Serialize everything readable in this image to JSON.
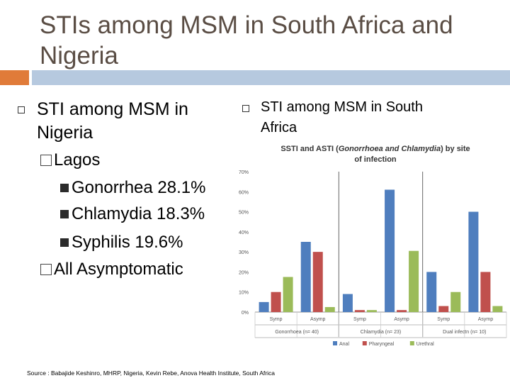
{
  "slide": {
    "title": "STIs among MSM in South Africa and Nigeria",
    "left": {
      "heading_line1": "STI among MSM in",
      "heading_line2": "Nigeria",
      "sub1": "Lagos",
      "items": [
        "Gonorrhea 28.1%",
        "Chlamydia 18.3%",
        "Syphilis 19.6%"
      ],
      "sub2": "All Asymptomatic"
    },
    "right": {
      "heading_line1": "STI among MSM in South",
      "heading_line2": "Africa"
    },
    "source": "Source : Babajide Keshinro, MHRP, Nigeria, Kevin Rebe, Anova Health Institute, South Africa"
  },
  "colors": {
    "title": "#5a4d44",
    "accent": "#e07b39",
    "band": "#b6c9df",
    "anal": "#4f7ebe",
    "pharyngeal": "#c0504d",
    "urethral": "#9bbb59"
  },
  "chart_data": {
    "type": "bar",
    "title_prefix": "SSTI and ASTI (",
    "title_italic": "Gonorrhoea and Chlamydia",
    "title_suffix": ") by site",
    "title_line2": "of infection",
    "yticks": [
      "0%",
      "10%",
      "20%",
      "30%",
      "40%",
      "50%",
      "60%",
      "70%"
    ],
    "ylim": [
      0,
      70
    ],
    "groups": [
      "Gonorrhoea (n= 40)",
      "Chlamydia (n= 23)",
      "Dual infectn (n= 10)"
    ],
    "categories": [
      "Symp",
      "Asymp",
      "Symp",
      "Asymp",
      "Symp",
      "Asymp"
    ],
    "series": [
      {
        "name": "Anal",
        "values": [
          5,
          35,
          9,
          61,
          20,
          50
        ]
      },
      {
        "name": "Pharyngeal",
        "values": [
          10,
          30,
          1,
          1,
          3,
          20
        ]
      },
      {
        "name": "Urethral",
        "values": [
          17.5,
          2.5,
          1,
          30.5,
          10,
          3
        ]
      }
    ],
    "legend": "bottom",
    "grid": false
  }
}
